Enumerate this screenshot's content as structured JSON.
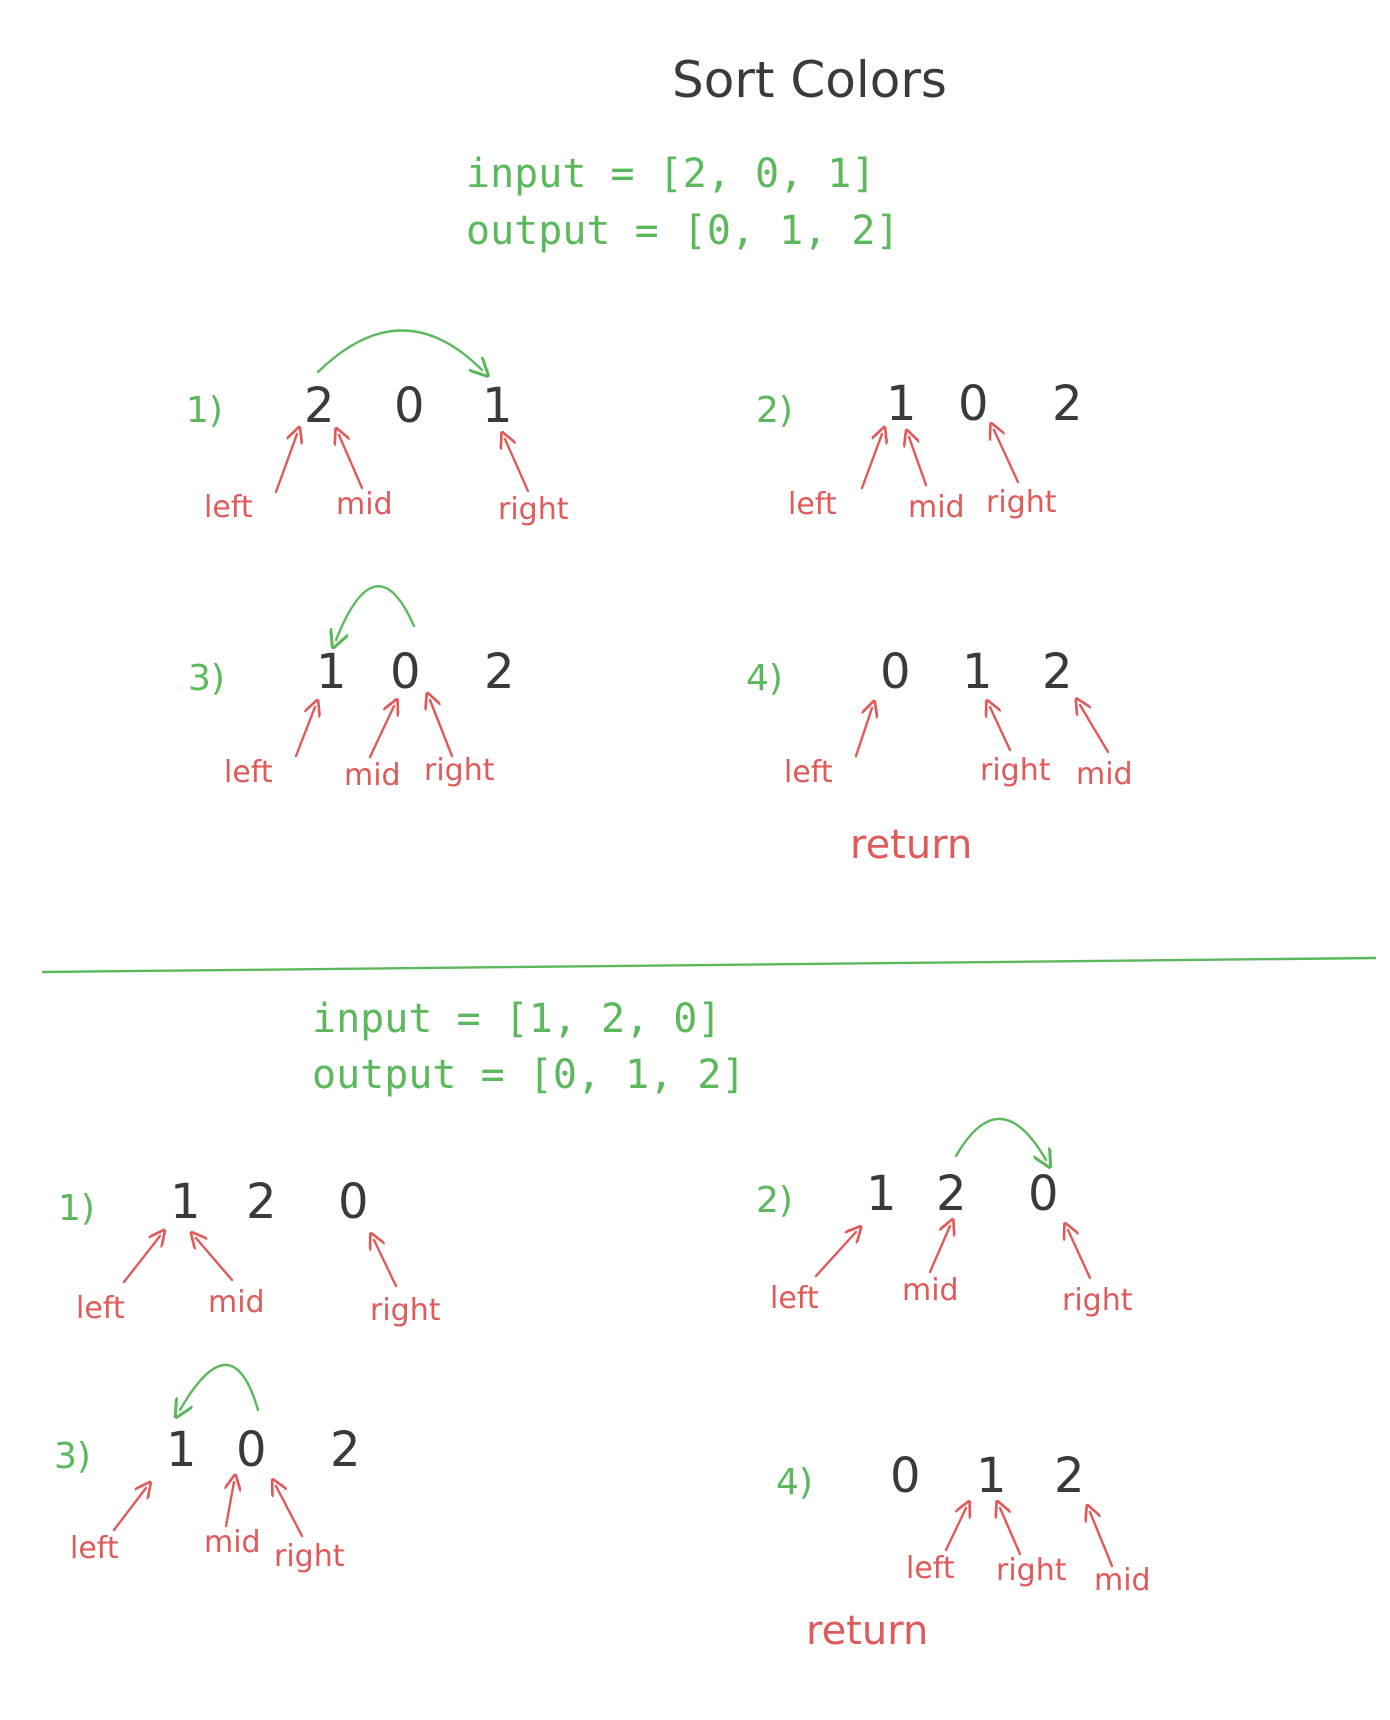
{
  "title": "Sort Colors",
  "example1": {
    "input": "input = [2, 0, 1]",
    "output": "output = [0, 1, 2]",
    "steps": [
      {
        "label": "1)",
        "nums": [
          "2",
          "0",
          "1"
        ],
        "pointers": [
          "left",
          "mid",
          "right"
        ]
      },
      {
        "label": "2)",
        "nums": [
          "1",
          "0",
          "2"
        ],
        "pointers": [
          "left",
          "mid",
          "right"
        ]
      },
      {
        "label": "3)",
        "nums": [
          "1",
          "0",
          "2"
        ],
        "pointers": [
          "left",
          "mid",
          "right"
        ]
      },
      {
        "label": "4)",
        "nums": [
          "0",
          "1",
          "2"
        ],
        "pointers": [
          "left",
          "right",
          "mid"
        ],
        "note": "return"
      }
    ]
  },
  "example2": {
    "input": "input = [1, 2, 0]",
    "output": "output = [0, 1, 2]",
    "steps": [
      {
        "label": "1)",
        "nums": [
          "1",
          "2",
          "0"
        ],
        "pointers": [
          "left",
          "mid",
          "right"
        ]
      },
      {
        "label": "2)",
        "nums": [
          "1",
          "2",
          "0"
        ],
        "pointers": [
          "left",
          "mid",
          "right"
        ]
      },
      {
        "label": "3)",
        "nums": [
          "1",
          "0",
          "2"
        ],
        "pointers": [
          "left",
          "mid",
          "right"
        ]
      },
      {
        "label": "4)",
        "nums": [
          "0",
          "1",
          "2"
        ],
        "pointers": [
          "left",
          "right",
          "mid"
        ],
        "note": "return"
      }
    ]
  }
}
